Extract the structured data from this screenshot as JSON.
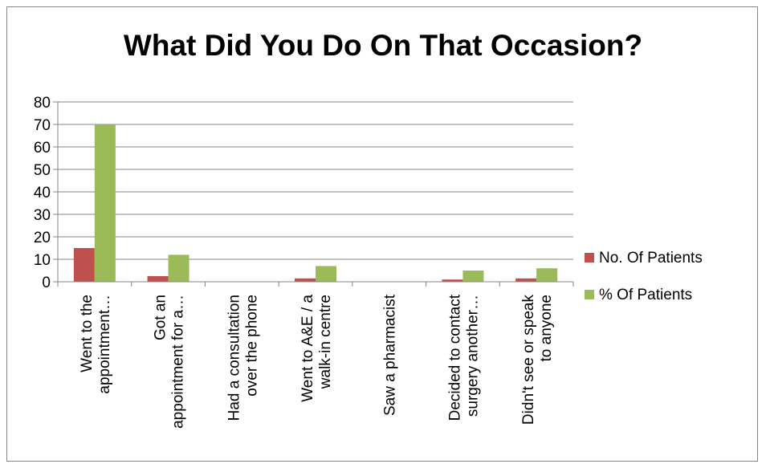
{
  "chart_data": {
    "type": "bar",
    "title": "What Did You Do On That Occasion?",
    "categories": [
      [
        "Went to the",
        "appointment…"
      ],
      [
        "Got an",
        "appointment for a…"
      ],
      [
        "Had a consultation",
        "over the phone"
      ],
      [
        "Went to A&E / a",
        "walk-in centre"
      ],
      [
        "Saw a pharmacist"
      ],
      [
        "Decided to contact",
        "surgery another…"
      ],
      [
        "Didn't see or speak",
        "to anyone"
      ]
    ],
    "series": [
      {
        "name": "No. Of Patients",
        "color": "#c0504d",
        "values": [
          15,
          2.5,
          0,
          1.5,
          0,
          1,
          1.5
        ]
      },
      {
        "name": "% Of Patients",
        "color": "#9bbb59",
        "values": [
          70,
          12,
          0,
          7,
          0,
          5,
          6
        ]
      }
    ],
    "ylim": [
      0,
      80
    ],
    "yticks": [
      0,
      10,
      20,
      30,
      40,
      50,
      60,
      70,
      80
    ],
    "grid": true,
    "legend": "right"
  }
}
